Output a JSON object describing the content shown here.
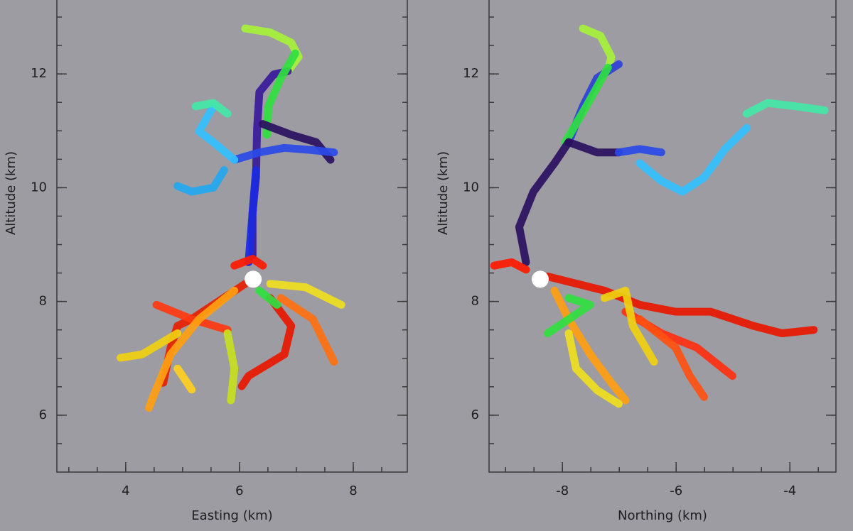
{
  "chart_data": [
    {
      "type": "line",
      "xlabel": "Easting (km)",
      "ylabel": "Altitude (km)",
      "xlim": [
        2.79,
        8.95
      ],
      "ylim": [
        5.0,
        13.3
      ],
      "xticks": [
        4,
        6,
        8
      ],
      "yticks": [
        6,
        8,
        10,
        12
      ],
      "xminorticks": [
        3,
        3.5,
        4,
        4.5,
        5,
        5.5,
        6,
        6.5,
        7,
        7.5,
        8,
        8.5
      ],
      "yminorticks": [
        5.5,
        6,
        6.5,
        7,
        7.5,
        8,
        8.5,
        9,
        9.5,
        10,
        10.5,
        11,
        11.5,
        12,
        12.5,
        13
      ],
      "series": [
        {
          "color": "#a6f23a",
          "x": [
            6.1,
            6.54,
            6.91,
            7.04,
            6.85
          ],
          "values": [
            12.8,
            12.73,
            12.55,
            12.3,
            12.05
          ]
        },
        {
          "color": "#3a1a9a",
          "x": [
            6.23,
            6.23,
            6.29,
            6.31,
            6.35,
            6.6,
            6.85
          ],
          "values": [
            8.81,
            9.56,
            10.18,
            11.05,
            11.68,
            11.99,
            12.05
          ]
        },
        {
          "color": "#1a2ae0",
          "x": [
            6.16,
            6.23,
            6.29
          ],
          "values": [
            8.69,
            9.56,
            10.31
          ]
        },
        {
          "color": "#30e040",
          "x": [
            6.48,
            6.51,
            6.73,
            6.98
          ],
          "values": [
            10.93,
            11.43,
            11.93,
            12.36
          ]
        },
        {
          "color": "#2a1060",
          "x": [
            6.41,
            6.91,
            7.35,
            7.6
          ],
          "values": [
            11.12,
            10.93,
            10.8,
            10.49
          ]
        },
        {
          "color": "#2a4ae8",
          "x": [
            5.91,
            6.35,
            6.79,
            7.29,
            7.66
          ],
          "values": [
            10.49,
            10.62,
            10.7,
            10.66,
            10.62
          ]
        },
        {
          "color": "#33c0ff",
          "x": [
            5.91,
            5.54,
            5.29,
            5.54
          ],
          "values": [
            10.49,
            10.8,
            10.99,
            11.43
          ]
        },
        {
          "color": "#44e8a8",
          "x": [
            5.23,
            5.54,
            5.79
          ],
          "values": [
            11.43,
            11.49,
            11.3
          ]
        },
        {
          "color": "#22a8f0",
          "x": [
            5.73,
            5.54,
            5.16,
            4.91
          ],
          "values": [
            10.31,
            10.0,
            9.93,
            10.03
          ]
        },
        {
          "color": "#ff1a00",
          "x": [
            5.91,
            6.23,
            6.41
          ],
          "values": [
            8.63,
            8.75,
            8.63
          ]
        },
        {
          "color": "#e82000",
          "x": [
            6.1,
            5.54,
            5.16,
            4.91,
            4.79,
            4.66
          ],
          "values": [
            8.31,
            7.94,
            7.69,
            7.57,
            7.19,
            6.57
          ]
        },
        {
          "color": "#ff3a10",
          "x": [
            4.54,
            5.16,
            5.79
          ],
          "values": [
            7.94,
            7.69,
            7.5
          ]
        },
        {
          "color": "#ffa010",
          "x": [
            5.91,
            5.29,
            4.79,
            4.48,
            4.41
          ],
          "values": [
            8.19,
            7.69,
            7.07,
            6.32,
            6.13
          ]
        },
        {
          "color": "#f0d010",
          "x": [
            4.91,
            4.29,
            3.91
          ],
          "values": [
            7.44,
            7.07,
            7.01
          ]
        },
        {
          "color": "#ffd020",
          "x": [
            4.91,
            5.16
          ],
          "values": [
            6.82,
            6.45
          ]
        },
        {
          "color": "#f0e020",
          "x": [
            6.54,
            7.16,
            7.79
          ],
          "values": [
            8.31,
            8.25,
            7.94
          ]
        },
        {
          "color": "#e81800",
          "x": [
            6.54,
            6.91,
            6.79,
            6.16,
            6.04
          ],
          "values": [
            8.06,
            7.57,
            7.07,
            6.69,
            6.51
          ]
        },
        {
          "color": "#ff7010",
          "x": [
            6.73,
            7.29,
            7.66
          ],
          "values": [
            8.06,
            7.69,
            6.94
          ]
        },
        {
          "color": "#c8e020",
          "x": [
            5.79,
            5.91,
            5.85
          ],
          "values": [
            7.44,
            6.82,
            6.26
          ]
        },
        {
          "color": "#30e040",
          "x": [
            6.35,
            6.66
          ],
          "values": [
            8.19,
            7.94
          ]
        },
        {
          "color": "#ffffff",
          "marker": true,
          "x": [
            6.24
          ],
          "values": [
            8.39
          ]
        }
      ]
    },
    {
      "type": "line",
      "xlabel": "Northing (km)",
      "ylabel": "Altitude (km)",
      "xlim": [
        -9.29,
        -3.19
      ],
      "ylim": [
        5.0,
        13.3
      ],
      "xticks": [
        -8,
        -6,
        -4
      ],
      "yticks": [
        6,
        8,
        10,
        12
      ],
      "xminorticks": [
        -9,
        -8.5,
        -8,
        -7.5,
        -7,
        -6.5,
        -6,
        -5.5,
        -5,
        -4.5,
        -4,
        -3.5
      ],
      "yminorticks": [
        5.5,
        6,
        6.5,
        7,
        7.5,
        8,
        8.5,
        9,
        9.5,
        10,
        10.5,
        11,
        11.5,
        12,
        12.5,
        13
      ],
      "series": [
        {
          "color": "#a6f23a",
          "x": [
            -7.64,
            -7.33,
            -7.14,
            -7.2
          ],
          "values": [
            12.8,
            12.67,
            12.3,
            12.05
          ]
        },
        {
          "color": "#2f40d8",
          "x": [
            -7.89,
            -7.64,
            -7.39,
            -7.01
          ],
          "values": [
            10.8,
            11.43,
            11.93,
            12.17
          ]
        },
        {
          "color": "#30e040",
          "x": [
            -7.95,
            -7.58,
            -7.2
          ],
          "values": [
            10.8,
            11.43,
            12.11
          ]
        },
        {
          "color": "#2a1060",
          "x": [
            -8.64,
            -8.76,
            -8.51,
            -8.14,
            -7.89
          ],
          "values": [
            8.69,
            9.31,
            9.93,
            10.43,
            10.8
          ]
        },
        {
          "color": "#2a1060",
          "x": [
            -7.89,
            -7.39,
            -7.01
          ],
          "values": [
            10.8,
            10.62,
            10.62
          ]
        },
        {
          "color": "#2a4ae8",
          "x": [
            -7.01,
            -6.64,
            -6.26
          ],
          "values": [
            10.62,
            10.68,
            10.62
          ]
        },
        {
          "color": "#33c0ff",
          "x": [
            -6.64,
            -6.26,
            -5.89,
            -5.51,
            -5.14,
            -4.76
          ],
          "values": [
            10.43,
            10.12,
            9.93,
            10.18,
            10.68,
            11.05
          ]
        },
        {
          "color": "#44e8a8",
          "x": [
            -4.76,
            -4.39,
            -3.89,
            -3.39
          ],
          "values": [
            11.3,
            11.49,
            11.43,
            11.36
          ]
        },
        {
          "color": "#ff1a00",
          "x": [
            -9.2,
            -8.89,
            -8.64
          ],
          "values": [
            8.63,
            8.69,
            8.56
          ]
        },
        {
          "color": "#e81800",
          "x": [
            -8.26,
            -7.26,
            -6.64,
            -6.01,
            -5.39,
            -4.64,
            -4.14,
            -3.58
          ],
          "values": [
            8.44,
            8.19,
            7.94,
            7.82,
            7.82,
            7.57,
            7.44,
            7.5
          ]
        },
        {
          "color": "#ff3010",
          "x": [
            -6.89,
            -6.26,
            -5.64,
            -5.01
          ],
          "values": [
            7.82,
            7.44,
            7.19,
            6.69
          ]
        },
        {
          "color": "#ff5010",
          "x": [
            -6.64,
            -6.01,
            -5.76,
            -5.51
          ],
          "values": [
            7.69,
            7.19,
            6.69,
            6.32
          ]
        },
        {
          "color": "#ffa010",
          "x": [
            -8.14,
            -7.89,
            -7.51,
            -7.14,
            -6.89
          ],
          "values": [
            8.19,
            7.69,
            7.07,
            6.57,
            6.26
          ]
        },
        {
          "color": "#f0e020",
          "x": [
            -7.89,
            -7.76,
            -7.39,
            -7.01
          ],
          "values": [
            7.44,
            6.82,
            6.44,
            6.2
          ]
        },
        {
          "color": "#f0d010",
          "x": [
            -7.26,
            -6.89,
            -6.76,
            -6.39
          ],
          "values": [
            8.06,
            8.19,
            7.57,
            6.94
          ]
        },
        {
          "color": "#30e040",
          "x": [
            -7.89,
            -7.51,
            -8.26
          ],
          "values": [
            8.06,
            7.94,
            7.44
          ]
        },
        {
          "color": "#ffffff",
          "marker": true,
          "x": [
            -8.39
          ],
          "values": [
            8.39
          ]
        }
      ]
    }
  ]
}
